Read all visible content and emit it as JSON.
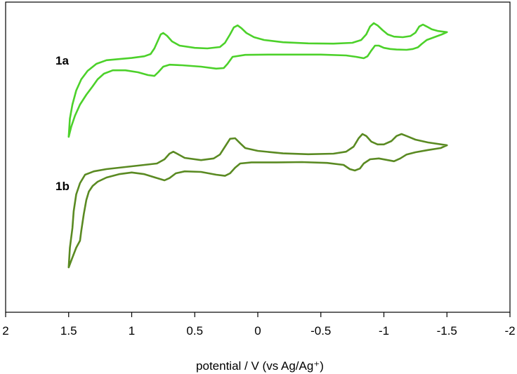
{
  "chart_data": {
    "type": "line",
    "title": "",
    "xlabel": "potential / V (vs Ag/Ag⁺)",
    "ylabel": "",
    "xlim": [
      2,
      -2
    ],
    "x_reversed": true,
    "x_ticks": [
      {
        "value": 2,
        "label": "2"
      },
      {
        "value": 1.5,
        "label": "1.5"
      },
      {
        "value": 1,
        "label": "1"
      },
      {
        "value": 0.5,
        "label": "0.5"
      },
      {
        "value": 0,
        "label": "0"
      },
      {
        "value": -0.5,
        "label": "-0.5"
      },
      {
        "value": -1,
        "label": "-1"
      },
      {
        "value": -1.5,
        "label": "-1.5"
      },
      {
        "value": -2,
        "label": "-2"
      }
    ],
    "y_ticks_shown": false,
    "ylim": [
      0,
      10
    ],
    "grid": false,
    "legend": "none",
    "series": [
      {
        "name": "1a",
        "color": "#4cd12a",
        "points": [
          [
            1.5,
            6.25
          ],
          [
            1.49,
            6.9
          ],
          [
            1.47,
            7.4
          ],
          [
            1.44,
            7.9
          ],
          [
            1.4,
            8.3
          ],
          [
            1.35,
            8.6
          ],
          [
            1.28,
            8.85
          ],
          [
            1.2,
            8.98
          ],
          [
            1.1,
            9.02
          ],
          [
            1.0,
            9.06
          ],
          [
            0.9,
            9.12
          ],
          [
            0.85,
            9.2
          ],
          [
            0.82,
            9.4
          ],
          [
            0.79,
            9.7
          ],
          [
            0.77,
            9.9
          ],
          [
            0.75,
            9.95
          ],
          [
            0.72,
            9.85
          ],
          [
            0.68,
            9.65
          ],
          [
            0.62,
            9.5
          ],
          [
            0.5,
            9.42
          ],
          [
            0.4,
            9.4
          ],
          [
            0.3,
            9.45
          ],
          [
            0.26,
            9.6
          ],
          [
            0.22,
            9.9
          ],
          [
            0.19,
            10.15
          ],
          [
            0.16,
            10.22
          ],
          [
            0.13,
            10.12
          ],
          [
            0.09,
            9.95
          ],
          [
            0.03,
            9.8
          ],
          [
            -0.05,
            9.7
          ],
          [
            -0.2,
            9.62
          ],
          [
            -0.4,
            9.58
          ],
          [
            -0.6,
            9.57
          ],
          [
            -0.75,
            9.6
          ],
          [
            -0.82,
            9.7
          ],
          [
            -0.86,
            9.9
          ],
          [
            -0.89,
            10.18
          ],
          [
            -0.92,
            10.3
          ],
          [
            -0.95,
            10.22
          ],
          [
            -0.99,
            10.05
          ],
          [
            -1.03,
            9.9
          ],
          [
            -1.08,
            9.82
          ],
          [
            -1.15,
            9.8
          ],
          [
            -1.21,
            9.84
          ],
          [
            -1.25,
            9.96
          ],
          [
            -1.28,
            10.18
          ],
          [
            -1.31,
            10.25
          ],
          [
            -1.34,
            10.18
          ],
          [
            -1.38,
            10.08
          ],
          [
            -1.43,
            10.02
          ],
          [
            -1.5,
            9.98
          ],
          [
            -1.46,
            9.9
          ],
          [
            -1.4,
            9.8
          ],
          [
            -1.34,
            9.7
          ],
          [
            -1.3,
            9.56
          ],
          [
            -1.27,
            9.44
          ],
          [
            -1.23,
            9.38
          ],
          [
            -1.18,
            9.35
          ],
          [
            -1.1,
            9.36
          ],
          [
            -1.05,
            9.38
          ],
          [
            -1.0,
            9.42
          ],
          [
            -0.96,
            9.5
          ],
          [
            -0.93,
            9.5
          ],
          [
            -0.9,
            9.32
          ],
          [
            -0.87,
            9.12
          ],
          [
            -0.84,
            9.05
          ],
          [
            -0.78,
            9.1
          ],
          [
            -0.7,
            9.15
          ],
          [
            -0.5,
            9.18
          ],
          [
            -0.3,
            9.18
          ],
          [
            -0.1,
            9.18
          ],
          [
            0.1,
            9.17
          ],
          [
            0.2,
            9.1
          ],
          [
            0.24,
            8.85
          ],
          [
            0.27,
            8.7
          ],
          [
            0.33,
            8.68
          ],
          [
            0.45,
            8.75
          ],
          [
            0.6,
            8.8
          ],
          [
            0.7,
            8.82
          ],
          [
            0.75,
            8.75
          ],
          [
            0.79,
            8.55
          ],
          [
            0.82,
            8.42
          ],
          [
            0.87,
            8.45
          ],
          [
            0.95,
            8.55
          ],
          [
            1.05,
            8.62
          ],
          [
            1.15,
            8.62
          ],
          [
            1.22,
            8.5
          ],
          [
            1.27,
            8.3
          ],
          [
            1.31,
            8.05
          ],
          [
            1.36,
            7.75
          ],
          [
            1.41,
            7.4
          ],
          [
            1.45,
            7.0
          ],
          [
            1.48,
            6.6
          ],
          [
            1.5,
            6.25
          ]
        ]
      },
      {
        "name": "1b",
        "color": "#5a8a22",
        "points": [
          [
            1.5,
            1.6
          ],
          [
            1.49,
            2.3
          ],
          [
            1.47,
            3.0
          ],
          [
            1.46,
            3.6
          ],
          [
            1.44,
            4.2
          ],
          [
            1.41,
            4.6
          ],
          [
            1.37,
            4.9
          ],
          [
            1.3,
            5.02
          ],
          [
            1.2,
            5.1
          ],
          [
            1.1,
            5.15
          ],
          [
            1.0,
            5.2
          ],
          [
            0.9,
            5.25
          ],
          [
            0.8,
            5.3
          ],
          [
            0.74,
            5.45
          ],
          [
            0.7,
            5.65
          ],
          [
            0.67,
            5.72
          ],
          [
            0.64,
            5.65
          ],
          [
            0.58,
            5.5
          ],
          [
            0.45,
            5.42
          ],
          [
            0.35,
            5.48
          ],
          [
            0.3,
            5.62
          ],
          [
            0.26,
            5.9
          ],
          [
            0.22,
            6.18
          ],
          [
            0.18,
            6.2
          ],
          [
            0.14,
            6.02
          ],
          [
            0.1,
            5.85
          ],
          [
            0.0,
            5.75
          ],
          [
            -0.2,
            5.66
          ],
          [
            -0.4,
            5.63
          ],
          [
            -0.6,
            5.65
          ],
          [
            -0.7,
            5.72
          ],
          [
            -0.76,
            5.9
          ],
          [
            -0.8,
            6.2
          ],
          [
            -0.83,
            6.35
          ],
          [
            -0.86,
            6.28
          ],
          [
            -0.9,
            6.08
          ],
          [
            -0.95,
            5.98
          ],
          [
            -1.0,
            5.98
          ],
          [
            -1.06,
            6.1
          ],
          [
            -1.1,
            6.28
          ],
          [
            -1.14,
            6.35
          ],
          [
            -1.18,
            6.28
          ],
          [
            -1.25,
            6.15
          ],
          [
            -1.35,
            6.05
          ],
          [
            -1.5,
            5.95
          ],
          [
            -1.45,
            5.85
          ],
          [
            -1.35,
            5.78
          ],
          [
            -1.25,
            5.7
          ],
          [
            -1.18,
            5.62
          ],
          [
            -1.13,
            5.48
          ],
          [
            -1.08,
            5.38
          ],
          [
            -1.02,
            5.43
          ],
          [
            -0.96,
            5.48
          ],
          [
            -0.89,
            5.45
          ],
          [
            -0.84,
            5.3
          ],
          [
            -0.81,
            5.12
          ],
          [
            -0.77,
            5.05
          ],
          [
            -0.73,
            5.1
          ],
          [
            -0.68,
            5.25
          ],
          [
            -0.55,
            5.32
          ],
          [
            -0.35,
            5.35
          ],
          [
            -0.15,
            5.34
          ],
          [
            0.05,
            5.34
          ],
          [
            0.14,
            5.3
          ],
          [
            0.18,
            5.15
          ],
          [
            0.22,
            4.95
          ],
          [
            0.26,
            4.86
          ],
          [
            0.33,
            4.9
          ],
          [
            0.45,
            5.0
          ],
          [
            0.58,
            5.02
          ],
          [
            0.65,
            4.95
          ],
          [
            0.7,
            4.78
          ],
          [
            0.74,
            4.7
          ],
          [
            0.8,
            4.78
          ],
          [
            0.9,
            4.92
          ],
          [
            1.0,
            4.98
          ],
          [
            1.1,
            4.92
          ],
          [
            1.2,
            4.8
          ],
          [
            1.27,
            4.65
          ],
          [
            1.31,
            4.5
          ],
          [
            1.34,
            4.3
          ],
          [
            1.36,
            4.0
          ],
          [
            1.38,
            3.5
          ],
          [
            1.4,
            2.9
          ],
          [
            1.41,
            2.55
          ],
          [
            1.44,
            2.3
          ],
          [
            1.47,
            1.95
          ],
          [
            1.5,
            1.6
          ]
        ]
      }
    ]
  }
}
